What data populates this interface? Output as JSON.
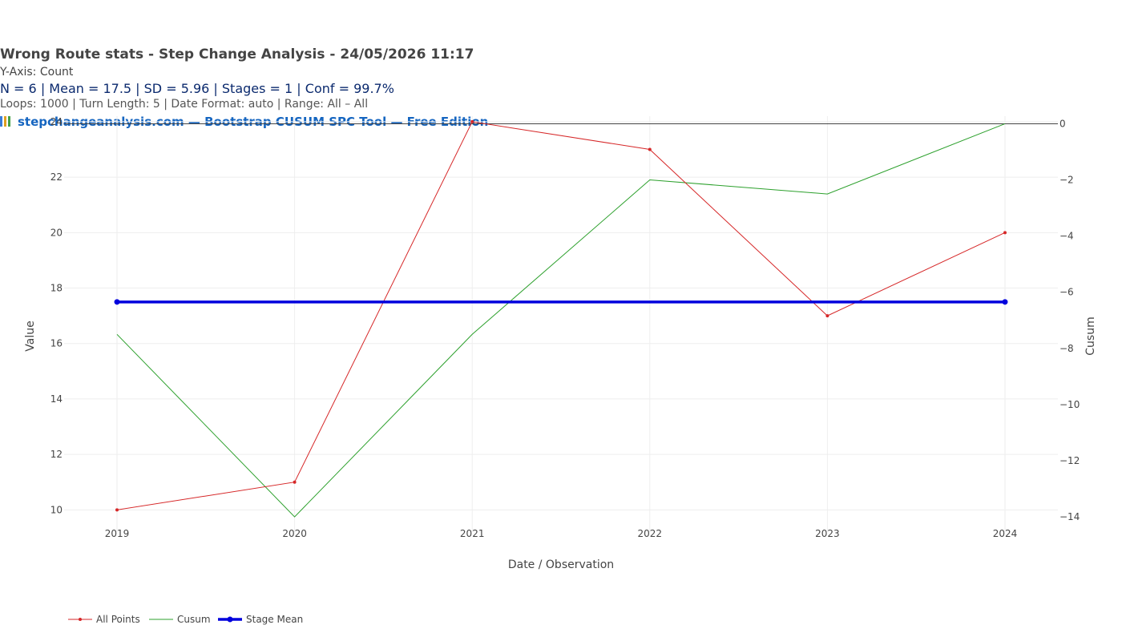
{
  "header": {
    "title": "Wrong Route stats - Step Change Analysis - 24/05/2026 11:17",
    "y_axis_note": "Y-Axis: Count",
    "stats": "N = 6  |  Mean = 17.5  |  SD = 5.96  |  Stages = 1  |  Conf = 99.7%",
    "meta": "Loops: 1000  |  Turn Length: 5  |  Date Format: auto  |  Range: All – All",
    "brand": "stepchangeanalysis.com — Bootstrap CUSUM SPC Tool — Free Edition",
    "brand_icon": "bar-chart-icon"
  },
  "chart_data": {
    "type": "line",
    "categories": [
      "2019",
      "2020",
      "2021",
      "2022",
      "2023",
      "2024"
    ],
    "xlabel": "Date / Observation",
    "ylabel": "Value",
    "y2label": "Cusum",
    "ylim": [
      9.2,
      24.2
    ],
    "y2lim": [
      -14.54,
      0.27
    ],
    "yticks": [
      10,
      12,
      14,
      16,
      18,
      20,
      22,
      24
    ],
    "y2ticks": [
      0,
      -2,
      -4,
      -6,
      -8,
      -10,
      -12,
      -14
    ],
    "y2tick_labels": [
      "0",
      "−2",
      "−4",
      "−6",
      "−8",
      "−10",
      "−12",
      "−14"
    ],
    "grid": true,
    "legend_position": "bottom-left",
    "series": [
      {
        "name": "All Points",
        "axis": "y",
        "values": [
          10,
          11,
          24,
          23,
          17,
          20
        ],
        "color": "#d62728",
        "markers": true
      },
      {
        "name": "Cusum",
        "axis": "y2",
        "values": [
          -7.5,
          -14,
          -7.5,
          -2,
          -2.5,
          0
        ],
        "color": "#2ca02c",
        "markers": false
      },
      {
        "name": "Stage Mean",
        "axis": "y",
        "values": [
          17.5,
          17.5,
          17.5,
          17.5,
          17.5,
          17.5
        ],
        "color": "#0000dd",
        "markers": true
      }
    ]
  }
}
